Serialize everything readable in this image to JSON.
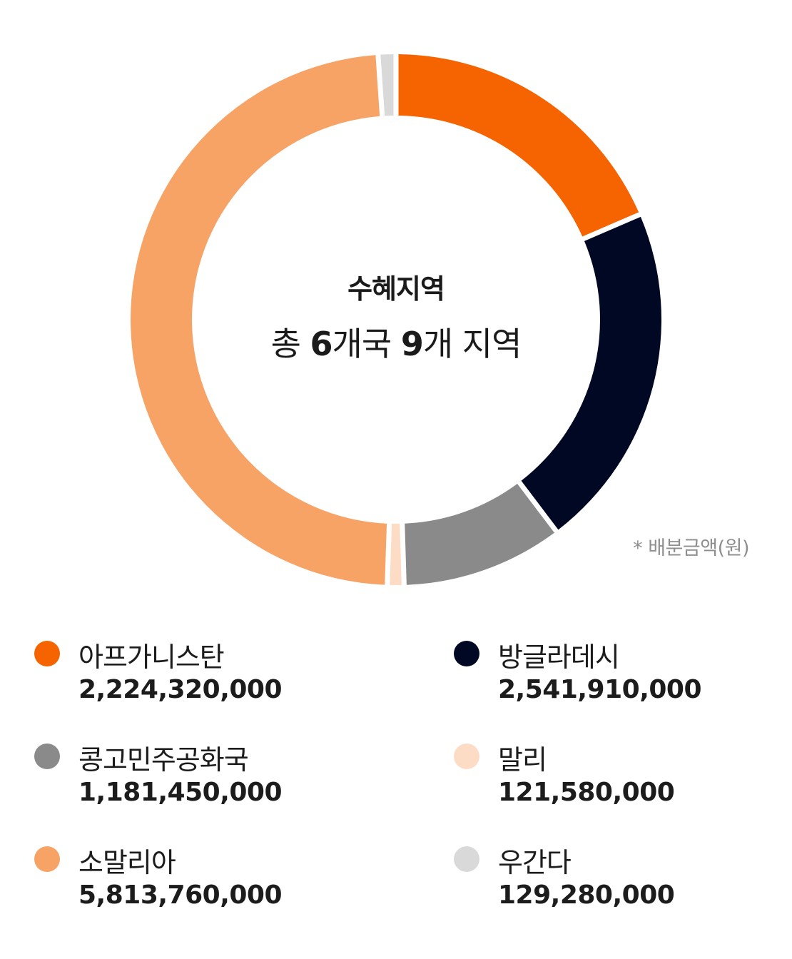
{
  "chart_data": {
    "type": "pie",
    "variant": "donut",
    "title": "수혜지역",
    "subtitle_parts": [
      "총 ",
      "6",
      "개국 ",
      "9",
      "개 지역"
    ],
    "note": "* 배분금액(원)",
    "categories": [
      "아프가니스탄",
      "방글라데시",
      "콩고민주공화국",
      "말리",
      "소말리아",
      "우간다"
    ],
    "values": [
      2224320000,
      2541910000,
      1181450000,
      121580000,
      5813760000,
      129280000
    ],
    "value_labels": [
      "2,224,320,000",
      "2,541,910,000",
      "1,181,450,000",
      "121,580,000",
      "5,813,760,000",
      "129,280,000"
    ],
    "colors": [
      "#f56400",
      "#000824",
      "#8a8a8a",
      "#fddcc6",
      "#f7a366",
      "#d9d9d9"
    ],
    "legend_position": "bottom"
  }
}
